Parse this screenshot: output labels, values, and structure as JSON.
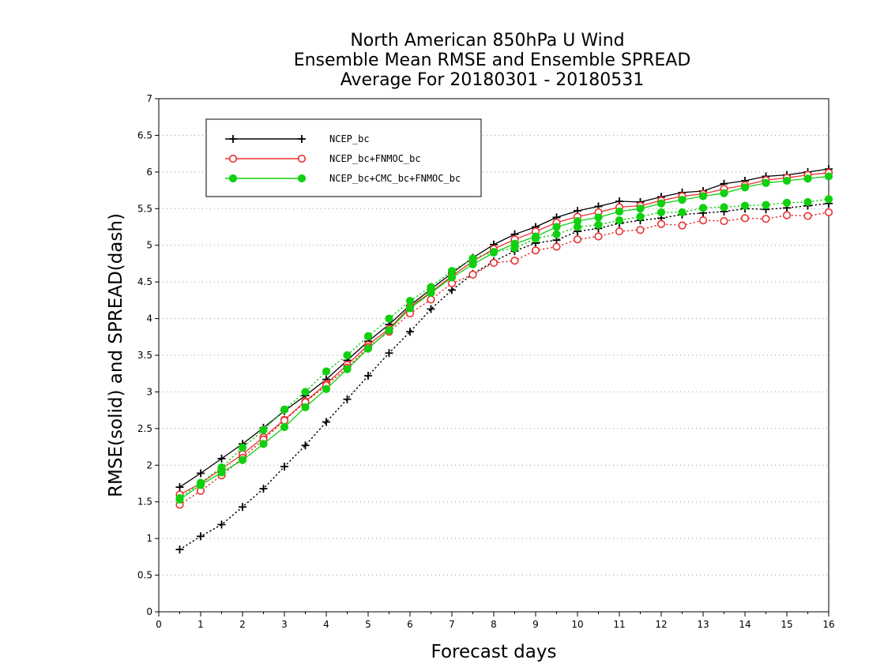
{
  "chart_data": {
    "type": "line",
    "title": [
      "North American 850hPa U Wind",
      "Ensemble Mean RMSE and Ensemble SPREAD",
      "Average For 20180301 - 20180531"
    ],
    "xlabel": "Forecast days",
    "ylabel": "RMSE(solid) and SPREAD(dash)",
    "xlim": [
      0,
      16
    ],
    "ylim": [
      0,
      7
    ],
    "xticks": [
      "0",
      "1",
      "2",
      "3",
      "4",
      "5",
      "6",
      "7",
      "8",
      "9",
      "10",
      "11",
      "12",
      "13",
      "14",
      "15",
      "16"
    ],
    "yticks": [
      "0",
      "0.5",
      "1",
      "1.5",
      "2",
      "2.5",
      "3",
      "3.5",
      "4",
      "4.5",
      "5",
      "5.5",
      "6",
      "6.5",
      "7"
    ],
    "grid": "horizontal dotted",
    "legend_position": "top-left",
    "x": [
      0.5,
      1,
      1.5,
      2,
      2.5,
      3,
      3.5,
      4,
      4.5,
      5,
      5.5,
      6,
      6.5,
      7,
      7.5,
      8,
      8.5,
      9,
      9.5,
      10,
      10.5,
      11,
      11.5,
      12,
      12.5,
      13,
      13.5,
      14,
      14.5,
      15,
      15.5,
      16
    ],
    "series": [
      {
        "name": "NCEP_bc",
        "color": "#000000",
        "marker": "plus",
        "rmse": [
          1.7,
          1.89,
          2.09,
          2.29,
          2.51,
          2.74,
          2.95,
          3.17,
          3.43,
          3.69,
          3.92,
          4.18,
          4.4,
          4.62,
          4.83,
          5.01,
          5.15,
          5.25,
          5.38,
          5.47,
          5.53,
          5.6,
          5.59,
          5.66,
          5.72,
          5.74,
          5.84,
          5.88,
          5.94,
          5.96,
          6.0,
          6.04
        ],
        "spread": [
          0.85,
          1.03,
          1.19,
          1.43,
          1.68,
          1.98,
          2.27,
          2.59,
          2.9,
          3.22,
          3.53,
          3.82,
          4.13,
          4.39,
          4.61,
          4.78,
          4.92,
          5.03,
          5.07,
          5.19,
          5.23,
          5.3,
          5.34,
          5.37,
          5.42,
          5.44,
          5.46,
          5.5,
          5.49,
          5.51,
          5.54,
          5.57
        ]
      },
      {
        "name": "NCEP_bc+FNMOC_bc",
        "color": "#e83030",
        "marker": "open-circle",
        "rmse": [
          1.6,
          1.75,
          1.95,
          2.15,
          2.38,
          2.62,
          2.87,
          3.11,
          3.37,
          3.64,
          3.86,
          4.16,
          4.36,
          4.58,
          4.78,
          4.95,
          5.08,
          5.19,
          5.31,
          5.39,
          5.45,
          5.52,
          5.54,
          5.61,
          5.67,
          5.7,
          5.77,
          5.82,
          5.89,
          5.92,
          5.96,
          5.99
        ],
        "spread": [
          1.46,
          1.65,
          1.86,
          2.1,
          2.35,
          2.61,
          2.86,
          3.09,
          3.33,
          3.61,
          3.82,
          4.07,
          4.26,
          4.48,
          4.6,
          4.76,
          4.79,
          4.93,
          4.98,
          5.08,
          5.12,
          5.19,
          5.21,
          5.29,
          5.27,
          5.34,
          5.33,
          5.37,
          5.36,
          5.41,
          5.4,
          5.45
        ]
      },
      {
        "name": "NCEP_bc+CMC_bc+FNMOC_bc",
        "color": "#10d010",
        "marker": "filled-circle",
        "rmse": [
          1.53,
          1.73,
          1.9,
          2.07,
          2.29,
          2.52,
          2.79,
          3.04,
          3.31,
          3.59,
          3.84,
          4.14,
          4.35,
          4.56,
          4.74,
          4.9,
          5.02,
          5.12,
          5.25,
          5.33,
          5.38,
          5.46,
          5.5,
          5.57,
          5.62,
          5.67,
          5.71,
          5.79,
          5.85,
          5.88,
          5.91,
          5.94
        ],
        "spread": [
          1.55,
          1.76,
          1.97,
          2.24,
          2.48,
          2.76,
          3.0,
          3.28,
          3.5,
          3.76,
          4.0,
          4.24,
          4.43,
          4.65,
          4.82,
          4.91,
          4.96,
          5.09,
          5.15,
          5.25,
          5.28,
          5.34,
          5.39,
          5.45,
          5.45,
          5.51,
          5.52,
          5.54,
          5.55,
          5.58,
          5.59,
          5.63
        ]
      }
    ]
  }
}
